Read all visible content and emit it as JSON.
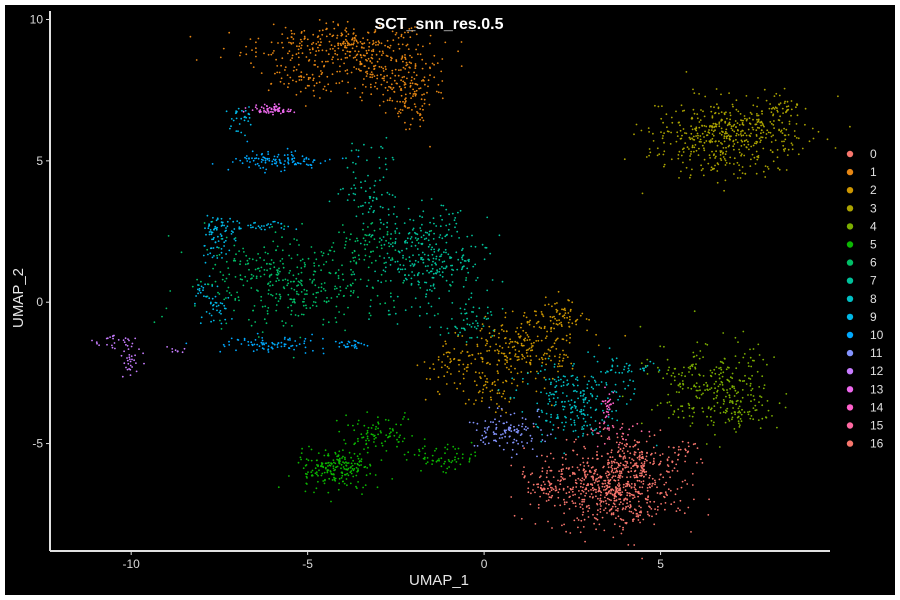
{
  "chart_data": {
    "type": "scatter",
    "title": "SCT_snn_res.0.5",
    "xlabel": "UMAP_1",
    "ylabel": "UMAP_2",
    "xlim": [
      -12.3,
      9.8
    ],
    "ylim": [
      -8.8,
      10.3
    ],
    "xticks": [
      -10,
      -5,
      0,
      5
    ],
    "xtick_labels": [
      "-10",
      "-5",
      "0",
      "5"
    ],
    "yticks": [
      -5,
      0,
      5,
      10
    ],
    "ytick_labels": [
      "-5",
      "0",
      "5",
      "10"
    ],
    "background": "#000000",
    "grid": false,
    "legend_position": "right",
    "series": [
      {
        "name": "0",
        "color": "#F8766D",
        "clusters": [
          [
            3.6,
            -6.6,
            1.1,
            0.8,
            650
          ],
          [
            4.4,
            -5.5,
            0.6,
            0.6,
            120
          ],
          [
            1.8,
            -6.4,
            0.5,
            0.4,
            60
          ]
        ]
      },
      {
        "name": "1",
        "color": "#E68613",
        "clusters": [
          [
            -4.2,
            9.1,
            1.4,
            0.4,
            260
          ],
          [
            -2.7,
            8.2,
            0.9,
            0.6,
            180
          ],
          [
            -2.2,
            7.2,
            0.4,
            0.6,
            90
          ],
          [
            -5.2,
            8.0,
            0.6,
            0.5,
            70
          ]
        ]
      },
      {
        "name": "2",
        "color": "#CD9600",
        "clusters": [
          [
            1.1,
            -1.6,
            1.0,
            0.7,
            230
          ],
          [
            2.0,
            -0.5,
            0.5,
            0.4,
            70
          ],
          [
            -0.8,
            -2.2,
            0.7,
            0.6,
            70
          ],
          [
            0.4,
            -3.2,
            0.5,
            0.4,
            40
          ]
        ]
      },
      {
        "name": "3",
        "color": "#ABA300",
        "clusters": [
          [
            6.8,
            5.9,
            1.2,
            0.8,
            480
          ],
          [
            8.4,
            6.6,
            0.5,
            0.5,
            60
          ]
        ]
      },
      {
        "name": "4",
        "color": "#7CAE00",
        "clusters": [
          [
            6.5,
            -2.9,
            1.0,
            0.9,
            280
          ],
          [
            7.3,
            -4.0,
            0.5,
            0.4,
            40
          ]
        ]
      },
      {
        "name": "5",
        "color": "#0CB702",
        "clusters": [
          [
            -4.2,
            -5.9,
            0.6,
            0.4,
            210
          ],
          [
            -3.0,
            -4.7,
            0.6,
            0.5,
            90
          ],
          [
            -1.0,
            -5.5,
            0.7,
            0.3,
            60
          ]
        ]
      },
      {
        "name": "6",
        "color": "#00BE67",
        "clusters": [
          [
            -5.5,
            0.8,
            1.6,
            1.0,
            380
          ],
          [
            -3.2,
            2.0,
            0.5,
            0.5,
            60
          ]
        ]
      },
      {
        "name": "7",
        "color": "#00C19A",
        "clusters": [
          [
            -1.6,
            1.6,
            0.9,
            1.0,
            310
          ],
          [
            -3.3,
            4.0,
            0.4,
            0.9,
            80
          ],
          [
            -0.3,
            -0.7,
            0.5,
            0.4,
            50
          ]
        ]
      },
      {
        "name": "8",
        "color": "#00BFC4",
        "clusters": [
          [
            2.5,
            -3.5,
            0.9,
            0.8,
            220
          ],
          [
            4.0,
            -2.4,
            0.5,
            0.3,
            40
          ]
        ]
      },
      {
        "name": "9",
        "color": "#00B8E7",
        "clusters": [
          [
            -7.6,
            2.3,
            0.3,
            0.5,
            70
          ],
          [
            -7.7,
            0.0,
            0.3,
            0.5,
            50
          ],
          [
            -6.9,
            6.5,
            0.2,
            0.3,
            30
          ],
          [
            -6.4,
            2.7,
            0.9,
            0.1,
            40
          ]
        ]
      },
      {
        "name": "10",
        "color": "#00A9FF",
        "clusters": [
          [
            -5.8,
            5.0,
            0.9,
            0.2,
            110
          ],
          [
            -6.2,
            -1.5,
            0.9,
            0.2,
            80
          ],
          [
            -3.8,
            -1.5,
            0.3,
            0.1,
            25
          ]
        ]
      },
      {
        "name": "11",
        "color": "#8494FF",
        "clusters": [
          [
            0.7,
            -4.6,
            0.6,
            0.4,
            110
          ]
        ]
      },
      {
        "name": "12",
        "color": "#C77CFF",
        "clusters": [
          [
            -10.5,
            -1.4,
            0.4,
            0.2,
            25
          ],
          [
            -10.0,
            -2.0,
            0.2,
            0.4,
            30
          ],
          [
            -8.7,
            -1.7,
            0.3,
            0.1,
            8
          ]
        ]
      },
      {
        "name": "13",
        "color": "#ED68ED",
        "clusters": [
          [
            -6.0,
            6.8,
            0.35,
            0.1,
            70
          ]
        ]
      },
      {
        "name": "14",
        "color": "#FF61CC",
        "clusters": [
          [
            3.5,
            -3.7,
            0.1,
            0.3,
            30
          ]
        ]
      },
      {
        "name": "15",
        "color": "#FF68A1",
        "clusters": [
          [
            3.7,
            -4.6,
            0.4,
            0.3,
            30
          ]
        ]
      },
      {
        "name": "16",
        "color": "#F8766D",
        "clusters": [
          [
            5.6,
            -5.3,
            0.3,
            0.3,
            25
          ]
        ]
      }
    ]
  }
}
